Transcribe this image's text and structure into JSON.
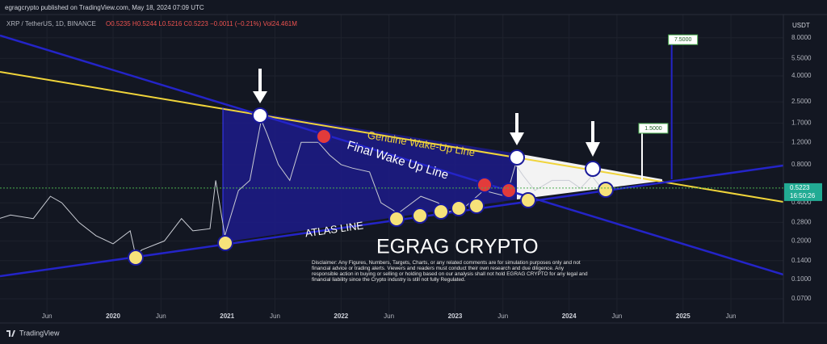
{
  "header": {
    "publisher": "egragcrypto published on TradingView.com, May 18, 2024 07:09 UTC",
    "symbol": "XRP / TetherUS, 1D, BINANCE",
    "ohlc": "O0.5235 H0.5244 L0.5216 C0.5223 −0.0011 (−0.21%) Vol24.461M"
  },
  "chart_data": {
    "type": "line",
    "log_scale": true,
    "grid": true,
    "color": "#c9ccd4",
    "y_axis_label": "USDT",
    "x": [
      2019.0,
      2019.1,
      2019.3,
      2019.45,
      2019.55,
      2019.7,
      2019.85,
      2020.0,
      2020.15,
      2020.2,
      2020.25,
      2020.45,
      2020.6,
      2020.7,
      2020.85,
      2020.9,
      2020.98,
      2021.1,
      2021.2,
      2021.3,
      2021.35,
      2021.45,
      2021.55,
      2021.65,
      2021.8,
      2021.9,
      2022.0,
      2022.1,
      2022.25,
      2022.35,
      2022.5,
      2022.7,
      2022.85,
      2022.95,
      2023.1,
      2023.25,
      2023.45,
      2023.53,
      2023.6,
      2023.7,
      2023.85,
      2024.0,
      2024.1,
      2024.2,
      2024.3,
      2024.38
    ],
    "values": [
      0.3,
      0.32,
      0.3,
      0.45,
      0.4,
      0.28,
      0.22,
      0.19,
      0.24,
      0.15,
      0.17,
      0.2,
      0.3,
      0.24,
      0.25,
      0.6,
      0.22,
      0.5,
      0.6,
      1.8,
      1.4,
      0.8,
      0.6,
      1.2,
      1.2,
      0.95,
      0.8,
      0.75,
      0.7,
      0.4,
      0.33,
      0.45,
      0.4,
      0.34,
      0.38,
      0.5,
      0.45,
      0.8,
      0.65,
      0.5,
      0.6,
      0.6,
      0.52,
      0.65,
      0.5,
      0.52
    ],
    "xlim": [
      2019.008,
      2025.88
    ],
    "xticks": [
      {
        "value": 2019.42,
        "label": "Jun"
      },
      2020,
      {
        "value": 2020.42,
        "label": "Jun"
      },
      2021,
      {
        "value": 2021.42,
        "label": "Jun"
      },
      2022,
      {
        "value": 2022.42,
        "label": "Jun"
      },
      2023,
      {
        "value": 2023.42,
        "label": "Jun"
      },
      2024,
      {
        "value": 2024.42,
        "label": "Jun"
      },
      2025,
      {
        "value": 2025.42,
        "label": "Jun"
      }
    ],
    "ylim": [
      0.0485,
      12.2
    ],
    "yticks": [
      {
        "value": 8,
        "label": "8.0000"
      },
      {
        "value": 5.5,
        "label": "5.5000"
      },
      {
        "value": 4,
        "label": "4.0000"
      },
      {
        "value": 2.5,
        "label": "2.5000"
      },
      {
        "value": 1.7,
        "label": "1.7000"
      },
      {
        "value": 1.2,
        "label": "1.2000"
      },
      {
        "value": 0.8,
        "label": "0.8000"
      },
      {
        "value": 0.4,
        "label": "0.4000"
      },
      {
        "value": 0.28,
        "label": "0.2800"
      },
      {
        "value": 0.2,
        "label": "0.2000"
      },
      {
        "value": 0.14,
        "label": "0.1400"
      },
      {
        "value": 0.1,
        "label": "0.1000"
      },
      {
        "value": 0.07,
        "label": "0.0700"
      }
    ],
    "last_price": {
      "value": 0.5223,
      "label": "0.5223"
    },
    "countdown": "16:50:26",
    "targets": [
      {
        "x": 2024.9,
        "value": 7.5,
        "label": "7.5000"
      },
      {
        "x": 2024.64,
        "value": 1.5,
        "label": "1.5000"
      }
    ],
    "annotations": [
      "Genuine Wake-Up Line",
      "Final Wake Up Line",
      "ATLAS LINE",
      "EGRAG CRYPTO"
    ],
    "disclaimer": "Disclaimer: Any Figures, Numbers, Targets, Charts, or any related comments are for simulation purposes only and not financial advice or trading alerts. Viewers and readers must conduct their own research and due diligence. Any responsible action in buying or selling or holding based on our analysis shall not hold EGRAG CRYPTO for any legal and financial liability since the Crypto industry is still not fully Regulated."
  },
  "footer": "TradingView"
}
